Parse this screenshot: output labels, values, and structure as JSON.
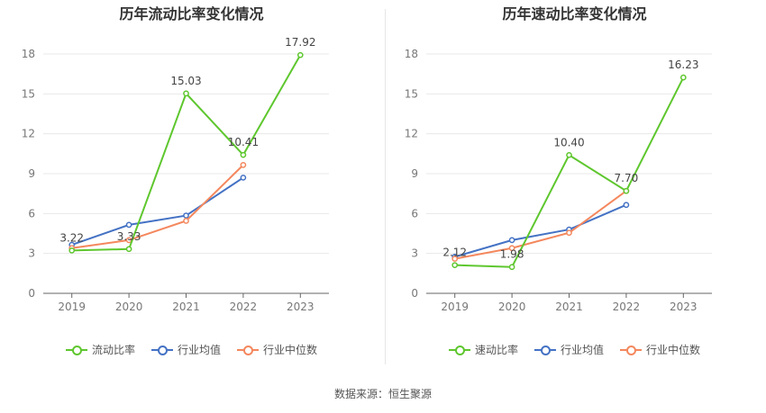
{
  "source": "数据来源：恒生聚源",
  "colors": {
    "primary": "#5ec72e",
    "avg": "#4472c4",
    "median": "#f4875d",
    "grid": "#e8e8e8",
    "axis": "#666666"
  },
  "chart_data": [
    {
      "type": "line",
      "title": "历年流动比率变化情况",
      "categories": [
        "2019",
        "2020",
        "2021",
        "2022",
        "2023"
      ],
      "ylim": [
        0,
        18
      ],
      "yticks": [
        0,
        3,
        6,
        9,
        12,
        15,
        18
      ],
      "grid": true,
      "legend_position": "bottom",
      "series": [
        {
          "name": "流动比率",
          "color": "#5ec72e",
          "values": [
            3.22,
            3.33,
            15.03,
            10.41,
            17.92
          ],
          "labels": [
            "3.22",
            "3.33",
            "15.03",
            "10.41",
            "17.92"
          ]
        },
        {
          "name": "行业均值",
          "color": "#4472c4",
          "values": [
            3.65,
            5.15,
            5.85,
            8.7,
            null
          ]
        },
        {
          "name": "行业中位数",
          "color": "#f4875d",
          "values": [
            3.4,
            4.0,
            5.45,
            9.65,
            null
          ]
        }
      ]
    },
    {
      "type": "line",
      "title": "历年速动比率变化情况",
      "categories": [
        "2019",
        "2020",
        "2021",
        "2022",
        "2023"
      ],
      "ylim": [
        0,
        18
      ],
      "yticks": [
        0,
        3,
        6,
        9,
        12,
        15,
        18
      ],
      "grid": true,
      "legend_position": "bottom",
      "series": [
        {
          "name": "速动比率",
          "color": "#5ec72e",
          "values": [
            2.12,
            1.98,
            10.4,
            7.7,
            16.23
          ],
          "labels": [
            "2.12",
            "1.98",
            "10.40",
            "7.70",
            "16.23"
          ]
        },
        {
          "name": "行业均值",
          "color": "#4472c4",
          "values": [
            2.75,
            4.0,
            4.8,
            6.65,
            null
          ]
        },
        {
          "name": "行业中位数",
          "color": "#f4875d",
          "values": [
            2.6,
            3.4,
            4.55,
            7.7,
            null
          ]
        }
      ]
    }
  ]
}
